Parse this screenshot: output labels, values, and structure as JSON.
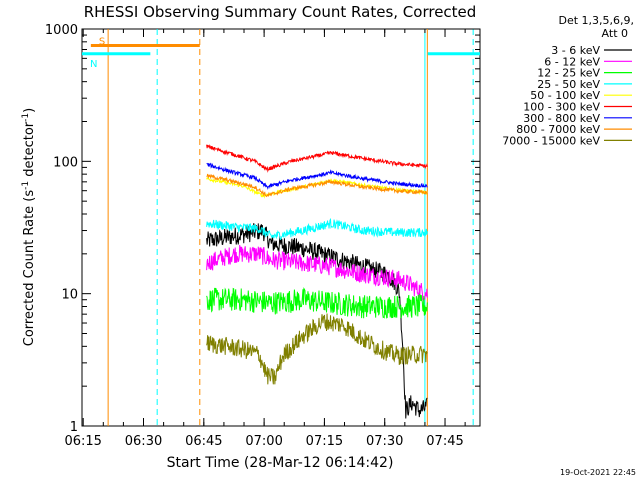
{
  "chart_data": {
    "type": "line",
    "title": "RHESSI Observing Summary Count Rates, Corrected",
    "xlabel": "Start Time (28-Mar-12 06:14:42)",
    "ylabel_main": "Corrected Count Rate (s",
    "ylabel_sup1": "-1",
    "ylabel_mid": " detector",
    "ylabel_sup2": "-1",
    "ylabel_end": ")",
    "x_unit": "minutes since 06:14:42",
    "xlim": [
      0,
      99
    ],
    "ylim": [
      1,
      1000
    ],
    "yscale": "log",
    "x_ticks": [
      {
        "value": 0.3,
        "label": "06:15"
      },
      {
        "value": 15.3,
        "label": "06:30"
      },
      {
        "value": 30.3,
        "label": "06:45"
      },
      {
        "value": 45.3,
        "label": "07:00"
      },
      {
        "value": 60.3,
        "label": "07:15"
      },
      {
        "value": 75.3,
        "label": "07:30"
      },
      {
        "value": 90.3,
        "label": "07:45"
      }
    ],
    "y_ticks": [
      {
        "value": 1,
        "label": "1"
      },
      {
        "value": 10,
        "label": "10"
      },
      {
        "value": 100,
        "label": "100"
      },
      {
        "value": 1000,
        "label": "1000"
      }
    ],
    "legend_header": [
      "Det 1,3,5,6,9,",
      "Att 0"
    ],
    "legend_position": "right",
    "data_window": [
      31.0,
      85.9
    ],
    "series": [
      {
        "name": "3 - 6 keV",
        "color": "#000000",
        "noise": 0.07,
        "points": [
          [
            31.0,
            25
          ],
          [
            40,
            28
          ],
          [
            45,
            30
          ],
          [
            47,
            24
          ],
          [
            55,
            22
          ],
          [
            62,
            19
          ],
          [
            70,
            16
          ],
          [
            76,
            14
          ],
          [
            78,
            12
          ],
          [
            79,
            10
          ],
          [
            79.8,
            4
          ],
          [
            80.5,
            1.3
          ],
          [
            82,
            1.5
          ],
          [
            84,
            1.3
          ],
          [
            85.9,
            1.4
          ]
        ]
      },
      {
        "name": "6 - 12 keV",
        "color": "#ff00ff",
        "noise": 0.07,
        "points": [
          [
            31.0,
            17
          ],
          [
            38,
            20
          ],
          [
            44,
            20
          ],
          [
            47,
            18
          ],
          [
            55,
            17
          ],
          [
            62,
            16
          ],
          [
            70,
            14
          ],
          [
            78,
            13
          ],
          [
            81,
            12
          ],
          [
            83,
            11
          ],
          [
            85.9,
            10
          ]
        ]
      },
      {
        "name": "12 - 25 keV",
        "color": "#00ff00",
        "noise": 0.09,
        "points": [
          [
            31.0,
            9
          ],
          [
            40,
            9
          ],
          [
            47,
            8.5
          ],
          [
            55,
            9
          ],
          [
            62,
            8.5
          ],
          [
            70,
            8
          ],
          [
            78,
            8
          ],
          [
            85.9,
            8
          ]
        ]
      },
      {
        "name": "25 - 50 keV",
        "color": "#00ffff",
        "noise": 0.035,
        "points": [
          [
            31.0,
            34
          ],
          [
            38,
            32
          ],
          [
            44,
            31
          ],
          [
            47,
            27
          ],
          [
            55,
            30
          ],
          [
            62,
            34
          ],
          [
            70,
            30
          ],
          [
            78,
            29
          ],
          [
            85.9,
            29
          ]
        ]
      },
      {
        "name": "50 - 100 keV",
        "color": "#ffff00",
        "noise": 0.012,
        "points": [
          [
            31.0,
            74
          ],
          [
            40,
            65
          ],
          [
            45,
            55
          ],
          [
            48,
            58
          ],
          [
            55,
            64
          ],
          [
            62,
            72
          ],
          [
            70,
            66
          ],
          [
            78,
            61
          ],
          [
            85.9,
            58
          ]
        ]
      },
      {
        "name": "100 - 300 keV",
        "color": "#ff0000",
        "noise": 0.014,
        "points": [
          [
            31.0,
            130
          ],
          [
            38,
            112
          ],
          [
            43,
            100
          ],
          [
            46,
            87
          ],
          [
            52,
            100
          ],
          [
            62,
            116
          ],
          [
            70,
            105
          ],
          [
            78,
            96
          ],
          [
            85.9,
            92
          ]
        ]
      },
      {
        "name": "300 - 800 keV",
        "color": "#0000ff",
        "noise": 0.014,
        "points": [
          [
            31.0,
            95
          ],
          [
            38,
            82
          ],
          [
            43,
            75
          ],
          [
            46,
            64
          ],
          [
            52,
            72
          ],
          [
            62,
            82
          ],
          [
            70,
            74
          ],
          [
            78,
            68
          ],
          [
            85.9,
            65
          ]
        ]
      },
      {
        "name": "800 - 7000 keV",
        "color": "#ff8c00",
        "noise": 0.014,
        "points": [
          [
            31.0,
            78
          ],
          [
            38,
            70
          ],
          [
            43,
            64
          ],
          [
            46,
            55
          ],
          [
            52,
            62
          ],
          [
            62,
            70
          ],
          [
            70,
            64
          ],
          [
            78,
            60
          ],
          [
            85.9,
            58
          ]
        ]
      },
      {
        "name": "7000 - 15000 keV",
        "color": "#808000",
        "noise": 0.07,
        "points": [
          [
            31.0,
            4.2
          ],
          [
            36,
            4
          ],
          [
            40,
            3.8
          ],
          [
            44,
            3.5
          ],
          [
            46,
            2.4
          ],
          [
            48,
            2.3
          ],
          [
            50,
            3.4
          ],
          [
            55,
            4.8
          ],
          [
            60,
            6.2
          ],
          [
            65,
            5.8
          ],
          [
            70,
            4.5
          ],
          [
            76,
            3.6
          ],
          [
            79,
            3.4
          ],
          [
            85.9,
            3.5
          ]
        ]
      }
    ],
    "annotations": {
      "flags": [
        {
          "label": "S",
          "color": "#ff8c00",
          "start": 2.2,
          "end": 29.3,
          "level": 750
        },
        {
          "label": "N",
          "color": "#00ffff",
          "start": 0.0,
          "end": 17.0,
          "level": 650
        },
        {
          "label": "",
          "color": "#00ffff",
          "start": 86.0,
          "end": 99.0,
          "level": 650
        }
      ],
      "vlines": [
        {
          "value": 6.5,
          "color": "#ff8c00",
          "style": "solid"
        },
        {
          "value": 18.7,
          "color": "#00ffff",
          "style": "dashed"
        },
        {
          "value": 29.3,
          "color": "#ff8c00",
          "style": "dashed"
        },
        {
          "value": 85.3,
          "color": "#00ffff",
          "style": "solid"
        },
        {
          "value": 85.9,
          "color": "#ff8c00",
          "style": "solid"
        },
        {
          "value": 97.3,
          "color": "#00ffff",
          "style": "dashed"
        }
      ]
    },
    "footer_date": "19-Oct-2021 22:45"
  }
}
